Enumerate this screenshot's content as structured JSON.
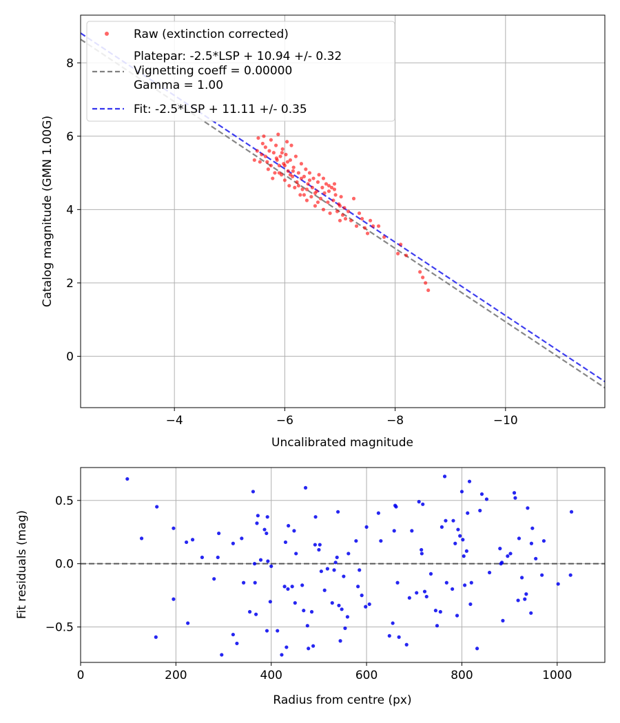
{
  "chart_data": [
    {
      "type": "scatter",
      "xlabel": "Uncalibrated magnitude",
      "ylabel": "Catalog magnitude (GMN 1.00G)",
      "xlim": [
        -2.3,
        -11.8
      ],
      "ylim": [
        -1.4,
        9.3
      ],
      "x_inverted": true,
      "y_inverted": true,
      "grid": true,
      "legend_position": "top-left",
      "x_ticks": [
        -4,
        -6,
        -8,
        -10
      ],
      "x_tick_labels": [
        "−4",
        "−6",
        "−8",
        "−10"
      ],
      "y_ticks": [
        0,
        2,
        4,
        6,
        8
      ],
      "y_tick_labels": [
        "0",
        "2",
        "4",
        "6",
        "8"
      ],
      "series": [
        {
          "name": "Raw (extinction corrected)",
          "kind": "scatter",
          "color": "#ff0000",
          "points": [
            [
              -5.45,
              5.35
            ],
            [
              -5.5,
              5.6
            ],
            [
              -5.52,
              5.95
            ],
            [
              -5.55,
              5.3
            ],
            [
              -5.58,
              5.5
            ],
            [
              -5.6,
              5.8
            ],
            [
              -5.62,
              6.0
            ],
            [
              -5.65,
              5.45
            ],
            [
              -5.68,
              5.3
            ],
            [
              -5.7,
              5.1
            ],
            [
              -5.72,
              5.6
            ],
            [
              -5.75,
              5.9
            ],
            [
              -5.78,
              4.85
            ],
            [
              -5.8,
              5.55
            ],
            [
              -5.82,
              5.0
            ],
            [
              -5.84,
              5.75
            ],
            [
              -5.86,
              5.35
            ],
            [
              -5.88,
              6.05
            ],
            [
              -5.9,
              5.2
            ],
            [
              -5.92,
              5.45
            ],
            [
              -5.94,
              4.95
            ],
            [
              -5.96,
              5.65
            ],
            [
              -5.98,
              5.25
            ],
            [
              -6.0,
              4.8
            ],
            [
              -6.02,
              5.5
            ],
            [
              -6.04,
              5.85
            ],
            [
              -6.06,
              5.05
            ],
            [
              -6.08,
              4.65
            ],
            [
              -6.1,
              5.35
            ],
            [
              -6.12,
              5.75
            ],
            [
              -6.14,
              4.9
            ],
            [
              -6.16,
              5.15
            ],
            [
              -6.18,
              4.6
            ],
            [
              -6.2,
              5.45
            ],
            [
              -6.22,
              4.75
            ],
            [
              -6.25,
              5.0
            ],
            [
              -6.28,
              4.4
            ],
            [
              -6.3,
              5.25
            ],
            [
              -6.32,
              4.55
            ],
            [
              -6.35,
              4.9
            ],
            [
              -6.38,
              5.1
            ],
            [
              -6.4,
              4.25
            ],
            [
              -6.42,
              4.7
            ],
            [
              -6.45,
              5.0
            ],
            [
              -6.48,
              4.35
            ],
            [
              -6.5,
              4.6
            ],
            [
              -6.52,
              4.85
            ],
            [
              -6.55,
              4.1
            ],
            [
              -6.58,
              4.5
            ],
            [
              -6.6,
              4.75
            ],
            [
              -6.62,
              4.95
            ],
            [
              -6.65,
              4.3
            ],
            [
              -6.68,
              4.6
            ],
            [
              -6.7,
              4.0
            ],
            [
              -6.72,
              4.45
            ],
            [
              -6.75,
              4.7
            ],
            [
              -6.78,
              4.2
            ],
            [
              -6.8,
              4.5
            ],
            [
              -6.82,
              3.9
            ],
            [
              -6.85,
              4.6
            ],
            [
              -6.88,
              4.25
            ],
            [
              -6.9,
              4.7
            ],
            [
              -6.92,
              4.4
            ],
            [
              -6.95,
              3.95
            ],
            [
              -6.98,
              4.15
            ],
            [
              -7.0,
              3.7
            ],
            [
              -7.02,
              4.35
            ],
            [
              -7.05,
              3.85
            ],
            [
              -7.08,
              4.05
            ],
            [
              -7.1,
              3.75
            ],
            [
              -7.15,
              3.95
            ],
            [
              -7.2,
              3.7
            ],
            [
              -7.25,
              4.3
            ],
            [
              -7.3,
              3.55
            ],
            [
              -7.35,
              3.9
            ],
            [
              -7.4,
              3.75
            ],
            [
              -7.45,
              3.5
            ],
            [
              -7.5,
              3.35
            ],
            [
              -7.55,
              3.7
            ],
            [
              -7.6,
              3.55
            ],
            [
              -7.7,
              3.55
            ],
            [
              -7.8,
              3.25
            ],
            [
              -8.05,
              2.8
            ],
            [
              -8.1,
              3.05
            ],
            [
              -8.2,
              2.75
            ],
            [
              -8.45,
              2.3
            ],
            [
              -8.5,
              2.15
            ],
            [
              -8.55,
              2.0
            ],
            [
              -8.6,
              1.8
            ],
            [
              -6.0,
              5.2
            ],
            [
              -6.35,
              4.4
            ],
            [
              -5.9,
              5.0
            ],
            [
              -6.7,
              4.85
            ],
            [
              -6.1,
              4.95
            ],
            [
              -5.75,
              5.2
            ],
            [
              -6.55,
              4.45
            ],
            [
              -6.25,
              4.65
            ],
            [
              -5.65,
              5.7
            ],
            [
              -6.9,
              4.55
            ],
            [
              -5.85,
              5.4
            ],
            [
              -6.45,
              4.8
            ],
            [
              -6.15,
              5.05
            ],
            [
              -6.6,
              4.2
            ],
            [
              -7.0,
              4.1
            ],
            [
              -5.95,
              5.55
            ],
            [
              -6.4,
              4.55
            ],
            [
              -6.8,
              4.65
            ],
            [
              -6.05,
              5.3
            ],
            [
              -6.3,
              4.85
            ]
          ]
        },
        {
          "name": "Platepar: -2.5*LSP + 10.94 +/- 0.32\nVignetting coeff = 0.00000\nGamma = 1.00",
          "kind": "line",
          "style": "dashed",
          "color": "#808080",
          "x": [
            -2.3,
            -11.8
          ],
          "y": [
            8.64,
            -0.86
          ]
        },
        {
          "name": "Fit: -2.5*LSP + 11.11 +/- 0.35",
          "kind": "line",
          "style": "dashed",
          "color": "#3333ee",
          "x": [
            -2.3,
            -11.8
          ],
          "y": [
            8.81,
            -0.69
          ]
        }
      ]
    },
    {
      "type": "scatter",
      "xlabel": "Radius from centre (px)",
      "ylabel": "Fit residuals (mag)",
      "xlim": [
        0,
        1100
      ],
      "ylim": [
        -0.78,
        0.76
      ],
      "grid": true,
      "x_ticks": [
        0,
        200,
        400,
        600,
        800,
        1000
      ],
      "x_tick_labels": [
        "0",
        "200",
        "400",
        "600",
        "800",
        "1000"
      ],
      "y_ticks": [
        -0.5,
        0.0,
        0.5
      ],
      "y_tick_labels": [
        "−0.5",
        "0.0",
        "0.5"
      ],
      "reference_line": {
        "y": 0.0,
        "style": "dashed",
        "color": "#555555"
      },
      "series": [
        {
          "name": "",
          "kind": "scatter",
          "color": "#0000ee",
          "points": [
            [
              98,
              0.67
            ],
            [
              128,
              0.2
            ],
            [
              160,
              0.45
            ],
            [
              158,
              -0.58
            ],
            [
              195,
              0.28
            ],
            [
              195,
              -0.28
            ],
            [
              222,
              0.17
            ],
            [
              225,
              -0.47
            ],
            [
              235,
              0.19
            ],
            [
              255,
              0.05
            ],
            [
              280,
              -0.12
            ],
            [
              288,
              0.05
            ],
            [
              290,
              0.24
            ],
            [
              296,
              -0.72
            ],
            [
              320,
              0.16
            ],
            [
              320,
              -0.56
            ],
            [
              328,
              -0.63
            ],
            [
              338,
              0.2
            ],
            [
              342,
              -0.15
            ],
            [
              355,
              -0.38
            ],
            [
              362,
              0.57
            ],
            [
              365,
              0.0
            ],
            [
              366,
              -0.15
            ],
            [
              368,
              -0.4
            ],
            [
              370,
              0.32
            ],
            [
              372,
              0.38
            ],
            [
              378,
              0.03
            ],
            [
              386,
              0.27
            ],
            [
              390,
              0.24
            ],
            [
              391,
              -0.53
            ],
            [
              392,
              0.37
            ],
            [
              393,
              0.02
            ],
            [
              398,
              -0.3
            ],
            [
              400,
              -0.02
            ],
            [
              413,
              -0.53
            ],
            [
              422,
              -0.72
            ],
            [
              428,
              -0.18
            ],
            [
              430,
              0.17
            ],
            [
              432,
              -0.66
            ],
            [
              435,
              -0.2
            ],
            [
              436,
              0.3
            ],
            [
              444,
              -0.18
            ],
            [
              448,
              0.26
            ],
            [
              450,
              -0.31
            ],
            [
              452,
              0.08
            ],
            [
              465,
              -0.17
            ],
            [
              468,
              -0.37
            ],
            [
              472,
              0.6
            ],
            [
              476,
              -0.49
            ],
            [
              478,
              -0.67
            ],
            [
              485,
              -0.38
            ],
            [
              488,
              -0.65
            ],
            [
              492,
              0.15
            ],
            [
              493,
              0.37
            ],
            [
              500,
              0.11
            ],
            [
              502,
              0.15
            ],
            [
              505,
              -0.06
            ],
            [
              512,
              -0.21
            ],
            [
              518,
              -0.04
            ],
            [
              528,
              -0.31
            ],
            [
              532,
              -0.05
            ],
            [
              535,
              0.01
            ],
            [
              538,
              0.05
            ],
            [
              540,
              0.41
            ],
            [
              542,
              -0.33
            ],
            [
              545,
              -0.61
            ],
            [
              548,
              -0.36
            ],
            [
              552,
              -0.1
            ],
            [
              555,
              -0.51
            ],
            [
              560,
              -0.42
            ],
            [
              562,
              0.08
            ],
            [
              578,
              0.18
            ],
            [
              582,
              -0.18
            ],
            [
              585,
              -0.05
            ],
            [
              590,
              -0.25
            ],
            [
              598,
              -0.34
            ],
            [
              600,
              0.29
            ],
            [
              606,
              -0.32
            ],
            [
              625,
              0.4
            ],
            [
              630,
              0.18
            ],
            [
              648,
              -0.57
            ],
            [
              655,
              -0.47
            ],
            [
              658,
              0.26
            ],
            [
              660,
              0.46
            ],
            [
              662,
              0.45
            ],
            [
              665,
              -0.15
            ],
            [
              668,
              -0.58
            ],
            [
              684,
              -0.64
            ],
            [
              690,
              -0.27
            ],
            [
              695,
              0.26
            ],
            [
              705,
              -0.23
            ],
            [
              710,
              0.49
            ],
            [
              715,
              0.11
            ],
            [
              716,
              0.08
            ],
            [
              718,
              0.47
            ],
            [
              722,
              -0.22
            ],
            [
              726,
              -0.26
            ],
            [
              735,
              -0.08
            ],
            [
              745,
              -0.37
            ],
            [
              748,
              -0.49
            ],
            [
              755,
              -0.38
            ],
            [
              758,
              0.29
            ],
            [
              764,
              0.69
            ],
            [
              766,
              0.34
            ],
            [
              768,
              -0.15
            ],
            [
              780,
              -0.2
            ],
            [
              782,
              0.34
            ],
            [
              786,
              0.16
            ],
            [
              790,
              -0.41
            ],
            [
              792,
              0.27
            ],
            [
              796,
              0.22
            ],
            [
              800,
              0.57
            ],
            [
              802,
              0.19
            ],
            [
              804,
              0.06
            ],
            [
              806,
              -0.17
            ],
            [
              810,
              0.1
            ],
            [
              812,
              0.4
            ],
            [
              816,
              0.65
            ],
            [
              818,
              -0.32
            ],
            [
              820,
              -0.15
            ],
            [
              832,
              -0.67
            ],
            [
              838,
              0.42
            ],
            [
              842,
              0.55
            ],
            [
              852,
              0.51
            ],
            [
              858,
              -0.07
            ],
            [
              880,
              0.12
            ],
            [
              882,
              0.0
            ],
            [
              884,
              0.01
            ],
            [
              886,
              -0.45
            ],
            [
              896,
              0.06
            ],
            [
              902,
              0.08
            ],
            [
              910,
              0.56
            ],
            [
              912,
              0.52
            ],
            [
              918,
              -0.29
            ],
            [
              920,
              0.2
            ],
            [
              926,
              -0.11
            ],
            [
              932,
              -0.28
            ],
            [
              935,
              -0.24
            ],
            [
              938,
              0.44
            ],
            [
              945,
              -0.39
            ],
            [
              946,
              0.16
            ],
            [
              948,
              0.28
            ],
            [
              955,
              0.04
            ],
            [
              968,
              -0.09
            ],
            [
              972,
              0.18
            ],
            [
              1002,
              -0.16
            ],
            [
              1028,
              -0.09
            ],
            [
              1030,
              0.41
            ]
          ]
        }
      ]
    }
  ]
}
